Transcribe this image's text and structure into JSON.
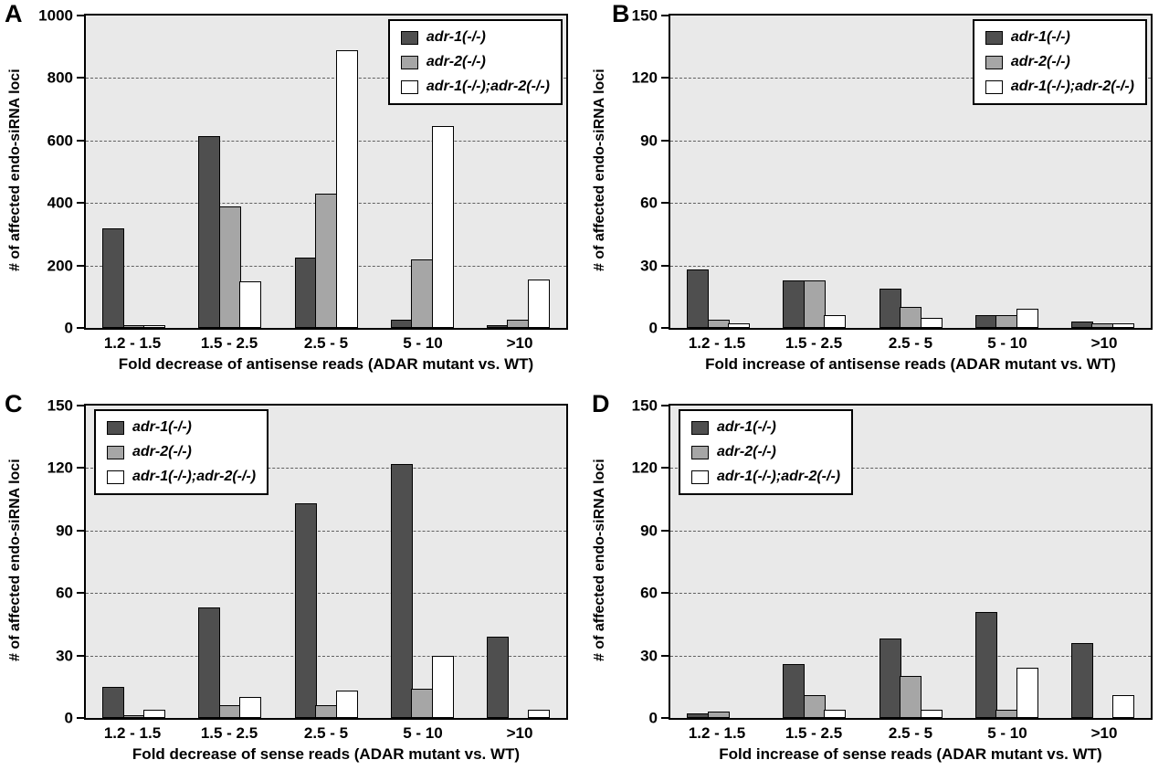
{
  "colors": {
    "series": [
      "#4f4f4f",
      "#a6a6a6",
      "#ffffff"
    ],
    "plot_bg": "#e9e9e9",
    "axis": "#000000",
    "gridline": "#606060"
  },
  "chart_data": [
    {
      "panel": "A",
      "type": "bar",
      "xlabel": "Fold decrease of antisense reads (ADAR mutant vs. WT)",
      "ylabel": "# of affected endo-siRNA loci",
      "ylim": [
        0,
        1000
      ],
      "yticks": [
        0,
        200,
        400,
        600,
        800,
        1000
      ],
      "categories": [
        "1.2 - 1.5",
        "1.5 - 2.5",
        "2.5 - 5",
        "5 - 10",
        ">10"
      ],
      "grid": true,
      "legend_position": "top-right",
      "series": [
        {
          "name": "adr-1(-/-)",
          "values": [
            320,
            615,
            225,
            25,
            10
          ]
        },
        {
          "name": "adr-2(-/-)",
          "values": [
            3,
            390,
            430,
            220,
            25
          ]
        },
        {
          "name": "adr-1(-/-);adr-2(-/-)",
          "values": [
            5,
            150,
            890,
            645,
            155
          ]
        }
      ]
    },
    {
      "panel": "B",
      "type": "bar",
      "xlabel": "Fold increase of antisense reads (ADAR mutant vs. WT)",
      "ylabel": "# of affected endo-siRNA loci",
      "ylim": [
        0,
        150
      ],
      "yticks": [
        0,
        30,
        60,
        90,
        120,
        150
      ],
      "categories": [
        "1.2 - 1.5",
        "1.5 - 2.5",
        "2.5 - 5",
        "5 - 10",
        ">10"
      ],
      "grid": true,
      "legend_position": "top-right",
      "series": [
        {
          "name": "adr-1(-/-)",
          "values": [
            28,
            23,
            19,
            6,
            3
          ]
        },
        {
          "name": "adr-2(-/-)",
          "values": [
            4,
            23,
            10,
            6,
            2
          ]
        },
        {
          "name": "adr-1(-/-);adr-2(-/-)",
          "values": [
            2,
            6,
            5,
            9,
            2
          ]
        }
      ]
    },
    {
      "panel": "C",
      "type": "bar",
      "xlabel": "Fold decrease of sense reads (ADAR mutant vs. WT)",
      "ylabel": "# of affected endo-siRNA loci",
      "ylim": [
        0,
        150
      ],
      "yticks": [
        0,
        30,
        60,
        90,
        120,
        150
      ],
      "categories": [
        "1.2 - 1.5",
        "1.5 - 2.5",
        "2.5 - 5",
        "5 - 10",
        ">10"
      ],
      "grid": true,
      "legend_position": "top-left",
      "series": [
        {
          "name": "adr-1(-/-)",
          "values": [
            15,
            53,
            103,
            122,
            39
          ]
        },
        {
          "name": "adr-2(-/-)",
          "values": [
            1,
            6,
            6,
            14,
            0
          ]
        },
        {
          "name": "adr-1(-/-);adr-2(-/-)",
          "values": [
            4,
            10,
            13,
            30,
            4
          ]
        }
      ]
    },
    {
      "panel": "D",
      "type": "bar",
      "xlabel": "Fold increase of sense reads (ADAR mutant vs. WT)",
      "ylabel": "# of affected endo-siRNA loci",
      "ylim": [
        0,
        150
      ],
      "yticks": [
        0,
        30,
        60,
        90,
        120,
        150
      ],
      "categories": [
        "1.2 - 1.5",
        "1.5 - 2.5",
        "2.5 - 5",
        "5 - 10",
        ">10"
      ],
      "grid": true,
      "legend_position": "top-left",
      "series": [
        {
          "name": "adr-1(-/-)",
          "values": [
            2,
            26,
            38,
            51,
            36
          ]
        },
        {
          "name": "adr-2(-/-)",
          "values": [
            3,
            11,
            20,
            4,
            0
          ]
        },
        {
          "name": "adr-1(-/-);adr-2(-/-)",
          "values": [
            0,
            4,
            4,
            24,
            11
          ]
        }
      ]
    }
  ]
}
